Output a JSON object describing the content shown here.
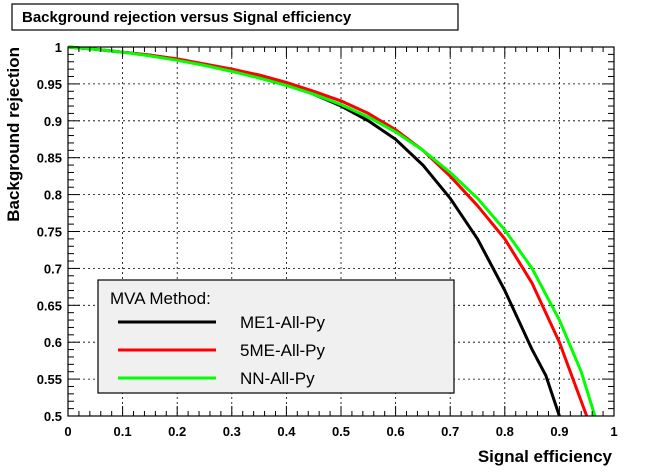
{
  "chart_data": {
    "type": "line",
    "title": "Background rejection versus Signal efficiency",
    "xlabel": "Signal efficiency",
    "ylabel": "Background rejection",
    "xlim": [
      0,
      1
    ],
    "ylim": [
      0.5,
      1
    ],
    "x_ticks": [
      "0",
      "0.1",
      "0.2",
      "0.3",
      "0.4",
      "0.5",
      "0.6",
      "0.7",
      "0.8",
      "0.9",
      "1"
    ],
    "y_ticks": [
      "0.5",
      "0.55",
      "0.6",
      "0.65",
      "0.7",
      "0.75",
      "0.8",
      "0.85",
      "0.9",
      "0.95",
      "1"
    ],
    "grid": true,
    "legend": {
      "title": "MVA Method:",
      "placement": "bottom-left"
    },
    "series": [
      {
        "name": "ME1-All-Py",
        "color": "#000000",
        "points": [
          [
            0,
            1.0
          ],
          [
            0.05,
            0.997
          ],
          [
            0.1,
            0.993
          ],
          [
            0.15,
            0.989
          ],
          [
            0.2,
            0.983
          ],
          [
            0.25,
            0.976
          ],
          [
            0.3,
            0.968
          ],
          [
            0.35,
            0.96
          ],
          [
            0.4,
            0.95
          ],
          [
            0.45,
            0.936
          ],
          [
            0.5,
            0.92
          ],
          [
            0.55,
            0.9
          ],
          [
            0.6,
            0.875
          ],
          [
            0.65,
            0.84
          ],
          [
            0.7,
            0.795
          ],
          [
            0.75,
            0.74
          ],
          [
            0.8,
            0.67
          ],
          [
            0.85,
            0.59
          ],
          [
            0.875,
            0.555
          ],
          [
            0.9,
            0.5
          ]
        ]
      },
      {
        "name": "5ME-All-Py",
        "color": "#ff0000",
        "points": [
          [
            0,
            1.0
          ],
          [
            0.05,
            0.997
          ],
          [
            0.1,
            0.993
          ],
          [
            0.15,
            0.989
          ],
          [
            0.2,
            0.984
          ],
          [
            0.25,
            0.977
          ],
          [
            0.3,
            0.97
          ],
          [
            0.35,
            0.962
          ],
          [
            0.4,
            0.952
          ],
          [
            0.45,
            0.94
          ],
          [
            0.5,
            0.927
          ],
          [
            0.55,
            0.91
          ],
          [
            0.6,
            0.888
          ],
          [
            0.65,
            0.86
          ],
          [
            0.7,
            0.825
          ],
          [
            0.75,
            0.785
          ],
          [
            0.8,
            0.74
          ],
          [
            0.85,
            0.68
          ],
          [
            0.9,
            0.6
          ],
          [
            0.925,
            0.55
          ],
          [
            0.95,
            0.5
          ]
        ]
      },
      {
        "name": "NN-All-Py",
        "color": "#00ff00",
        "points": [
          [
            0,
            1.0
          ],
          [
            0.05,
            0.997
          ],
          [
            0.1,
            0.993
          ],
          [
            0.15,
            0.988
          ],
          [
            0.2,
            0.982
          ],
          [
            0.25,
            0.975
          ],
          [
            0.3,
            0.967
          ],
          [
            0.35,
            0.958
          ],
          [
            0.4,
            0.948
          ],
          [
            0.45,
            0.936
          ],
          [
            0.5,
            0.922
          ],
          [
            0.55,
            0.905
          ],
          [
            0.6,
            0.885
          ],
          [
            0.65,
            0.86
          ],
          [
            0.7,
            0.83
          ],
          [
            0.75,
            0.795
          ],
          [
            0.8,
            0.752
          ],
          [
            0.85,
            0.7
          ],
          [
            0.9,
            0.63
          ],
          [
            0.94,
            0.56
          ],
          [
            0.965,
            0.5
          ]
        ]
      }
    ]
  }
}
